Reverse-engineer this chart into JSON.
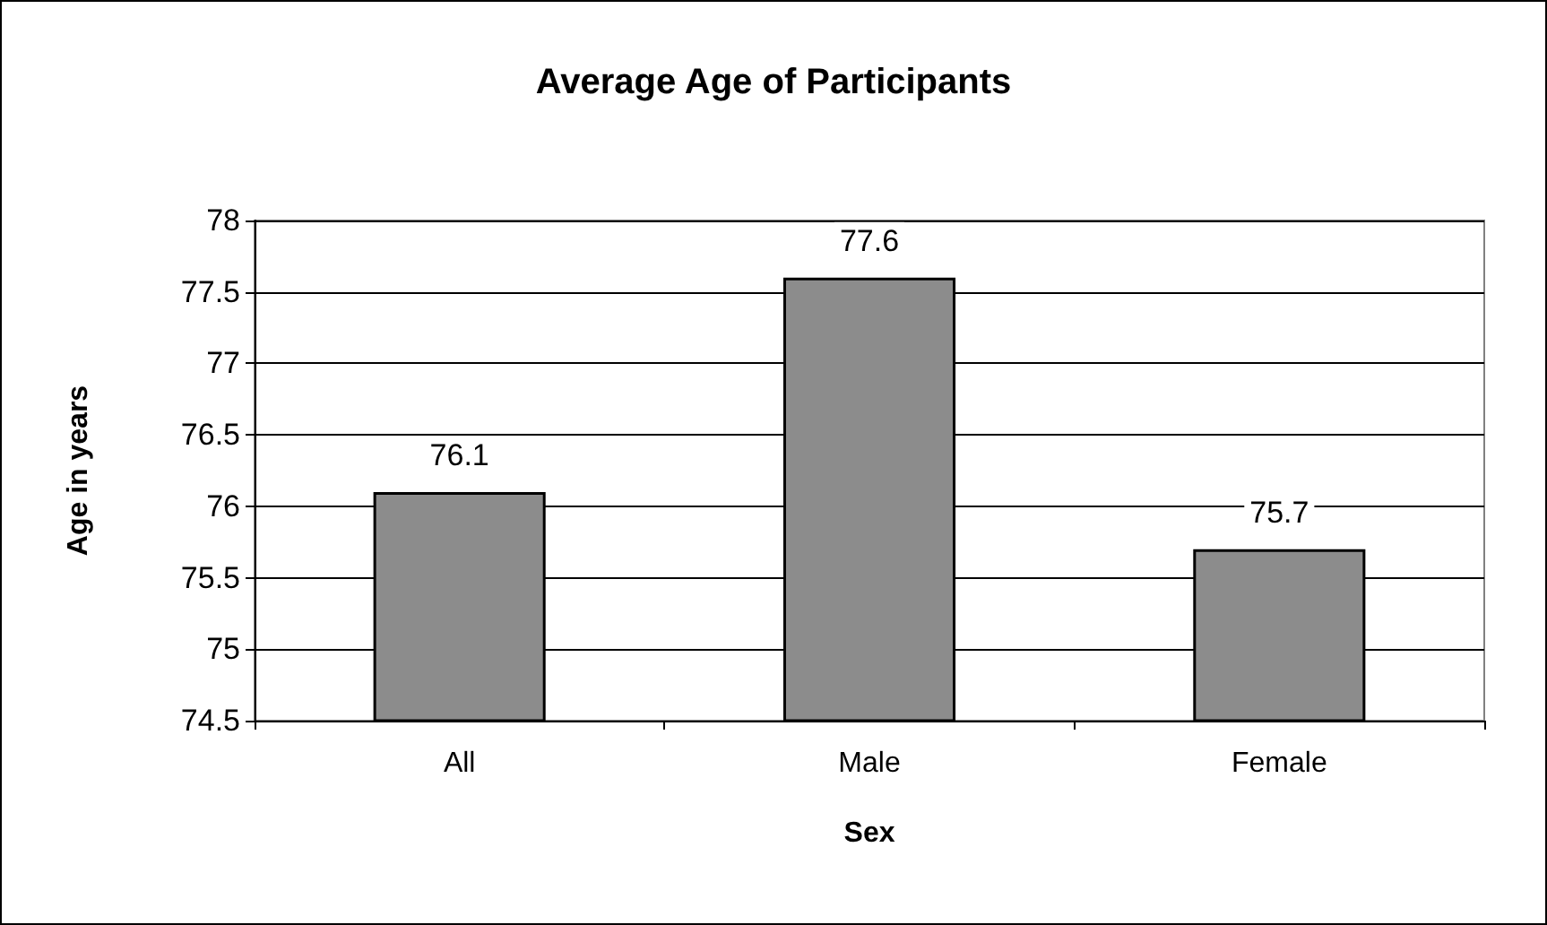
{
  "chart_data": {
    "type": "bar",
    "title": "Average Age of Participants",
    "xlabel": "Sex",
    "ylabel": "Age in years",
    "categories": [
      "All",
      "Male",
      "Female"
    ],
    "values": [
      76.1,
      77.6,
      75.7
    ],
    "color": "#8c8c8c",
    "ylim": [
      74.5,
      78
    ],
    "yticks": [
      74.5,
      75,
      75.5,
      76,
      76.5,
      77,
      77.5,
      78
    ],
    "grid": "y",
    "data_labels": true
  }
}
